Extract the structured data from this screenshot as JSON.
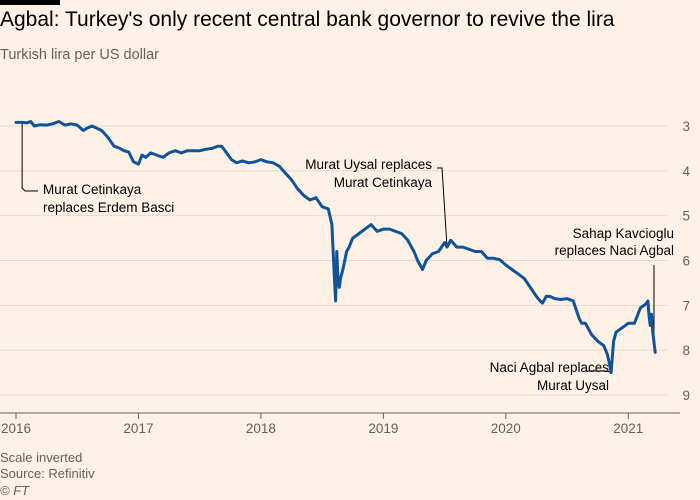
{
  "header": {
    "title": "Agbal: Turkey's only recent central bank governor to revive the lira",
    "subtitle": "Turkish lira per US dollar"
  },
  "footer": {
    "note": "Scale inverted",
    "source": "Source: Refinitiv",
    "credit": "© FT"
  },
  "colors": {
    "background": "#fff1e5",
    "line": "#0f5499",
    "grid": "#e6d9ce",
    "text": "#66605c"
  },
  "chart_data": {
    "type": "line",
    "title": "Agbal: Turkey's only recent central bank governor to revive the lira",
    "subtitle": "Turkish lira per US dollar",
    "ylabel": "",
    "xlabel": "",
    "y_inverted": true,
    "ylim": [
      3,
      9
    ],
    "y_ticks": [
      3,
      4,
      5,
      6,
      7,
      8,
      9
    ],
    "xlim": [
      2016.0,
      2021.3
    ],
    "x_ticks": [
      {
        "value": 2016,
        "label": "2016"
      },
      {
        "value": 2017,
        "label": "2017"
      },
      {
        "value": 2018,
        "label": "2018"
      },
      {
        "value": 2019,
        "label": "2019"
      },
      {
        "value": 2020,
        "label": "2020"
      },
      {
        "value": 2021,
        "label": "2021"
      }
    ],
    "grid": true,
    "series": [
      {
        "x": [
          2016.0,
          2016.05,
          2016.09,
          2016.12,
          2016.15,
          2016.2,
          2016.25,
          2016.3,
          2016.35,
          2016.4,
          2016.45,
          2016.5,
          2016.55,
          2016.58,
          2016.62,
          2016.66,
          2016.7,
          2016.75,
          2016.8,
          2016.85,
          2016.88,
          2016.92,
          2016.96,
          2017.0,
          2017.03,
          2017.06,
          2017.1,
          2017.15,
          2017.2,
          2017.25,
          2017.3,
          2017.35,
          2017.4,
          2017.45,
          2017.5,
          2017.55,
          2017.6,
          2017.65,
          2017.68,
          2017.72,
          2017.76,
          2017.8,
          2017.85,
          2017.9,
          2017.95,
          2018.0,
          2018.05,
          2018.1,
          2018.15,
          2018.2,
          2018.25,
          2018.3,
          2018.35,
          2018.4,
          2018.45,
          2018.5,
          2018.55,
          2018.58,
          2018.6,
          2018.61,
          2018.62,
          2018.63,
          2018.64,
          2018.65,
          2018.67,
          2018.7,
          2018.72,
          2018.75,
          2018.8,
          2018.85,
          2018.9,
          2018.95,
          2019.0,
          2019.05,
          2019.1,
          2019.15,
          2019.2,
          2019.23,
          2019.25,
          2019.28,
          2019.32,
          2019.35,
          2019.4,
          2019.45,
          2019.5,
          2019.52,
          2019.55,
          2019.6,
          2019.65,
          2019.7,
          2019.75,
          2019.8,
          2019.85,
          2019.9,
          2019.95,
          2020.0,
          2020.05,
          2020.1,
          2020.15,
          2020.2,
          2020.25,
          2020.28,
          2020.3,
          2020.33,
          2020.36,
          2020.4,
          2020.45,
          2020.5,
          2020.55,
          2020.6,
          2020.62,
          2020.65,
          2020.7,
          2020.75,
          2020.8,
          2020.83,
          2020.85,
          2020.86,
          2020.88,
          2020.9,
          2020.95,
          2021.0,
          2021.05,
          2021.1,
          2021.13,
          2021.15,
          2021.16,
          2021.17,
          2021.18,
          2021.19,
          2021.2,
          2021.22
        ],
        "values": [
          2.92,
          2.92,
          2.93,
          2.9,
          3.0,
          2.97,
          2.98,
          2.95,
          2.9,
          2.98,
          2.95,
          2.98,
          3.1,
          3.05,
          3.0,
          3.05,
          3.1,
          3.25,
          3.45,
          3.5,
          3.55,
          3.58,
          3.8,
          3.85,
          3.65,
          3.7,
          3.6,
          3.65,
          3.7,
          3.6,
          3.55,
          3.6,
          3.55,
          3.55,
          3.55,
          3.52,
          3.5,
          3.45,
          3.45,
          3.6,
          3.75,
          3.82,
          3.78,
          3.82,
          3.8,
          3.75,
          3.8,
          3.82,
          3.9,
          4.05,
          4.2,
          4.4,
          4.55,
          4.65,
          4.6,
          4.8,
          4.85,
          5.2,
          6.4,
          6.9,
          5.8,
          6.5,
          6.6,
          6.4,
          6.2,
          5.8,
          5.7,
          5.5,
          5.4,
          5.3,
          5.2,
          5.35,
          5.3,
          5.3,
          5.35,
          5.4,
          5.55,
          5.7,
          5.8,
          6.0,
          6.2,
          6.0,
          5.85,
          5.8,
          5.6,
          5.7,
          5.55,
          5.7,
          5.7,
          5.75,
          5.8,
          5.8,
          5.95,
          5.95,
          5.98,
          6.1,
          6.2,
          6.3,
          6.4,
          6.6,
          6.8,
          6.9,
          6.95,
          6.8,
          6.8,
          6.85,
          6.87,
          6.85,
          6.9,
          7.3,
          7.4,
          7.4,
          7.65,
          7.8,
          7.9,
          8.1,
          8.35,
          8.5,
          7.8,
          7.6,
          7.5,
          7.4,
          7.4,
          7.05,
          7.0,
          6.95,
          6.9,
          7.25,
          7.45,
          7.2,
          7.6,
          8.05
        ]
      }
    ],
    "annotations": [
      {
        "x": 2016.05,
        "lines": [
          "Murat Cetinkaya",
          "replaces Erdem Basci"
        ]
      },
      {
        "x": 2019.52,
        "lines": [
          "Murat Uysal replaces",
          "Murat Cetinkaya"
        ]
      },
      {
        "x": 2020.86,
        "lines": [
          "Naci Agbal replaces",
          "Murat Uysal"
        ]
      },
      {
        "x": 2021.21,
        "lines": [
          "Sahap Kavcioglu",
          "replaces Naci Agbal"
        ]
      }
    ]
  }
}
